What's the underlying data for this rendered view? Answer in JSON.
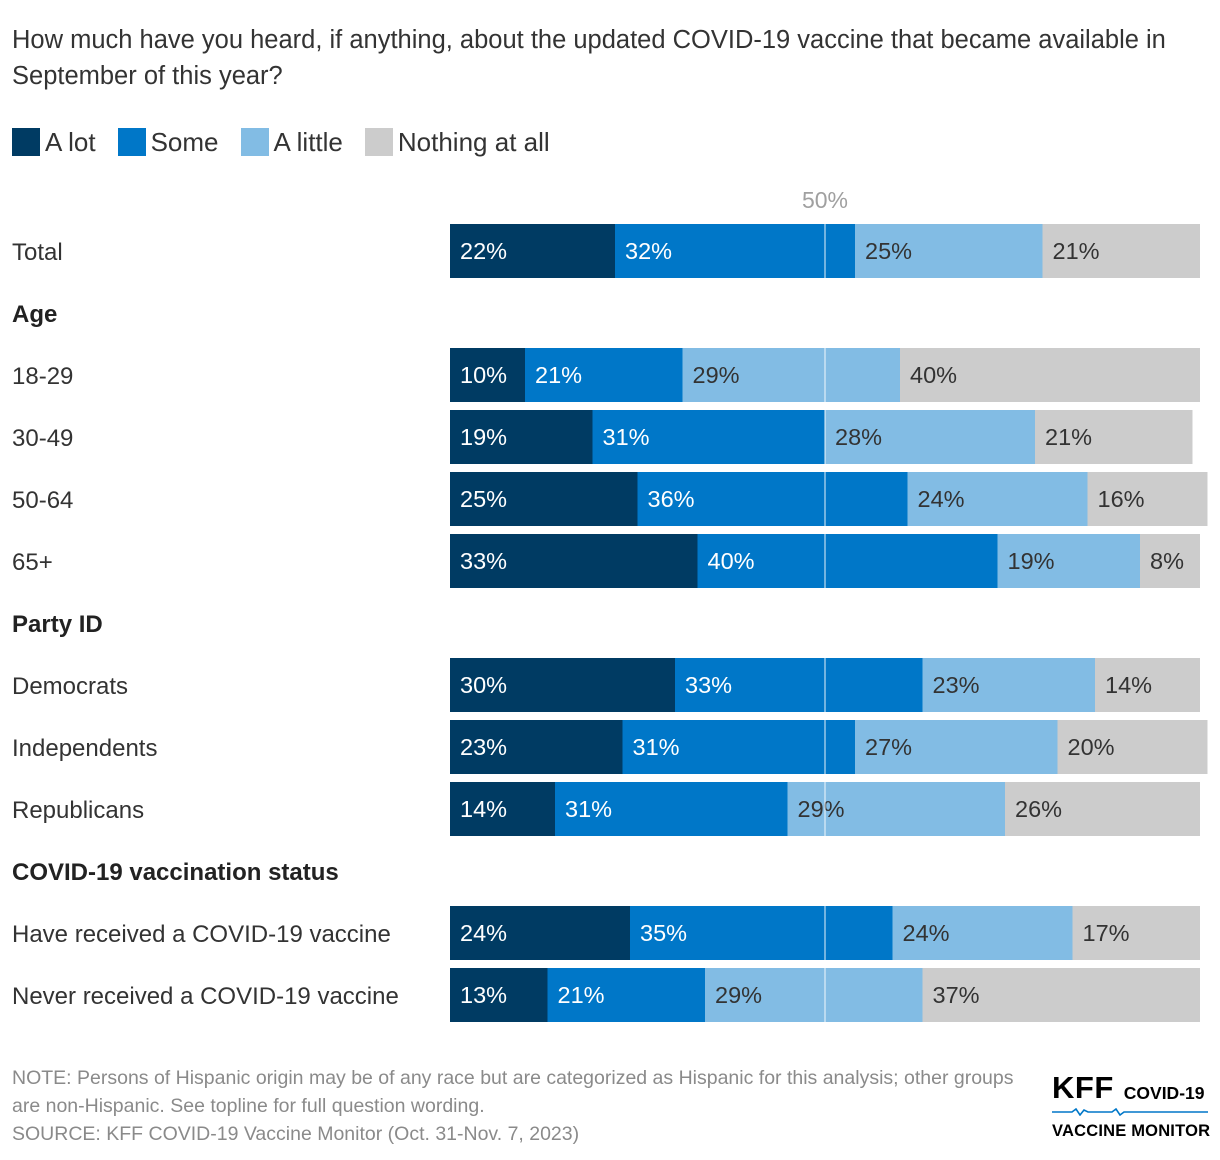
{
  "title": "How much have you heard, if anything, about the updated COVID-19 vaccine that became available in September of this year?",
  "legend": [
    {
      "label": "A lot",
      "color": "#003b63"
    },
    {
      "label": "Some",
      "color": "#0077c8"
    },
    {
      "label": "A little",
      "color": "#82bce4"
    },
    {
      "label": "Nothing at all",
      "color": "#cccccc"
    }
  ],
  "chart_data": {
    "type": "bar",
    "orientation": "horizontal-stacked-100",
    "title": "How much have you heard, if anything, about the updated COVID-19 vaccine that became available in September of this year?",
    "reference_line": {
      "value": 50,
      "label": "50%"
    },
    "xlim": [
      0,
      100
    ],
    "series": [
      {
        "name": "A lot",
        "color": "#003b63"
      },
      {
        "name": "Some",
        "color": "#0077c8"
      },
      {
        "name": "A little",
        "color": "#82bce4"
      },
      {
        "name": "Nothing at all",
        "color": "#cccccc"
      }
    ],
    "rows": [
      {
        "kind": "bar",
        "label": "Total",
        "values": [
          22,
          32,
          25,
          21
        ]
      },
      {
        "kind": "group",
        "label": "Age"
      },
      {
        "kind": "bar",
        "label": "18-29",
        "values": [
          10,
          21,
          29,
          40
        ]
      },
      {
        "kind": "bar",
        "label": "30-49",
        "values": [
          19,
          31,
          28,
          21
        ]
      },
      {
        "kind": "bar",
        "label": "50-64",
        "values": [
          25,
          36,
          24,
          16
        ]
      },
      {
        "kind": "bar",
        "label": "65+",
        "values": [
          33,
          40,
          19,
          8
        ]
      },
      {
        "kind": "group",
        "label": "Party ID"
      },
      {
        "kind": "bar",
        "label": "Democrats",
        "values": [
          30,
          33,
          23,
          14
        ]
      },
      {
        "kind": "bar",
        "label": "Independents",
        "values": [
          23,
          31,
          27,
          20
        ]
      },
      {
        "kind": "bar",
        "label": "Republicans",
        "values": [
          14,
          31,
          29,
          26
        ]
      },
      {
        "kind": "group",
        "label": "COVID-19 vaccination status"
      },
      {
        "kind": "bar",
        "label": "Have received a COVID-19 vaccine",
        "values": [
          24,
          35,
          24,
          17
        ]
      },
      {
        "kind": "bar",
        "label": "Never received a COVID-19 vaccine",
        "values": [
          13,
          21,
          29,
          37
        ]
      }
    ]
  },
  "notes": {
    "note": "NOTE: Persons of Hispanic origin may be of any race but are categorized as Hispanic for this analysis; other groups are non-Hispanic. See topline for full question wording.",
    "source": "SOURCE: KFF COVID-19 Vaccine Monitor (Oct. 31-Nov. 7, 2023)"
  },
  "logo": {
    "kff": "KFF",
    "line1": "COVID-19",
    "line2": "VACCINE MONITOR"
  }
}
